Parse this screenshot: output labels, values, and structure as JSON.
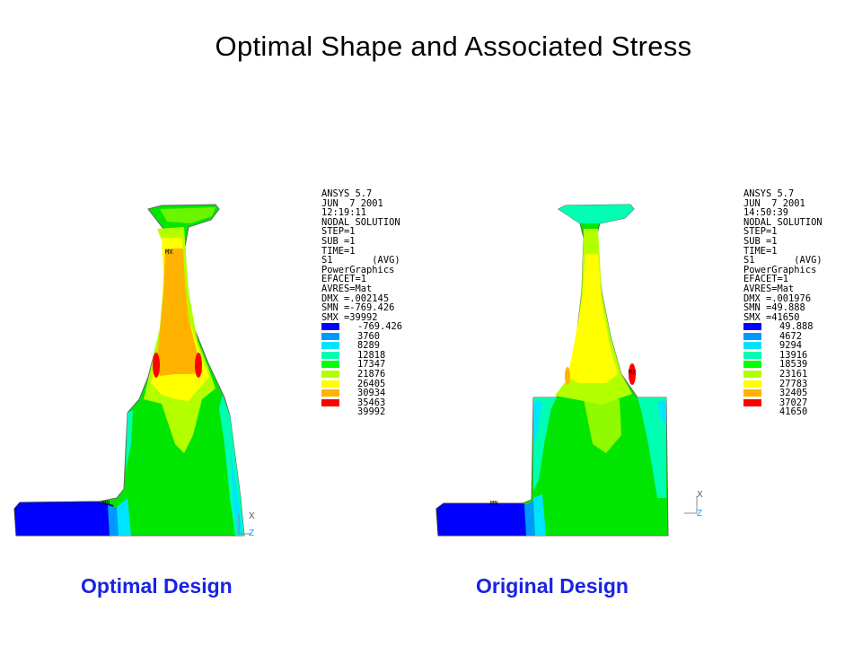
{
  "title": "Optimal Shape and Associated Stress",
  "colors": {
    "contour": [
      "#0000ff",
      "#0099ff",
      "#00e5ff",
      "#00ffb3",
      "#00ff00",
      "#b3ff00",
      "#ffff00",
      "#ffb300",
      "#ff0000"
    ],
    "caption": "#1a22e6"
  },
  "figures": [
    {
      "caption": "Optimal Design",
      "info": [
        "ANSYS 5.7",
        "JUN  7 2001",
        "12:19:11",
        "NODAL SOLUTION",
        "STEP=1",
        "SUB =1",
        "TIME=1",
        "S1       (AVG)",
        "PowerGraphics",
        "EFACET=1",
        "AVRES=Mat",
        "DMX =.002145",
        "SMN =-769.426",
        "SMX =39992"
      ],
      "legend": [
        "-769.426",
        "3760",
        "8289",
        "12818",
        "17347",
        "21876",
        "26405",
        "30934",
        "35463",
        "39992"
      ],
      "mx_label": "MX",
      "mn_label": "MN",
      "axis_x": "X",
      "axis_z": "Z"
    },
    {
      "caption": "Original Design",
      "info": [
        "ANSYS 5.7",
        "JUN  7 2001",
        "14:50:39",
        "NODAL SOLUTION",
        "STEP=1",
        "SUB =1",
        "TIME=1",
        "S1       (AVG)",
        "PowerGraphics",
        "EFACET=1",
        "AVRES=Mat",
        "DMX =.001976",
        "SMN =49.888",
        "SMX =41650"
      ],
      "legend": [
        "49.888",
        "4672",
        "9294",
        "13916",
        "18539",
        "23161",
        "27783",
        "32405",
        "37027",
        "41650"
      ],
      "mx_label": "MX",
      "mn_label": "MN",
      "axis_x": "X",
      "axis_z": "Z"
    }
  ]
}
